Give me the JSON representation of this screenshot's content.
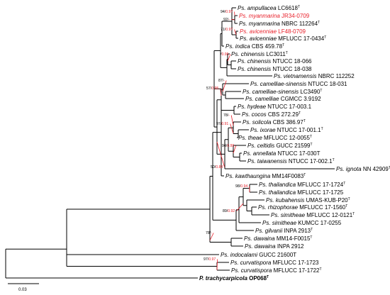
{
  "figure": {
    "scale_bar_label": "0.03",
    "accent_color": "#e8202a",
    "text_color": "#000000"
  },
  "taxa": [
    {
      "genus": "Ps.",
      "epithet": "ampullacea",
      "strain": "LC6618",
      "type": true,
      "red": false
    },
    {
      "genus": "Ps.",
      "epithet": "myanmarina",
      "strain": "JR34-0709",
      "type": false,
      "red": true
    },
    {
      "genus": "Ps.",
      "epithet": "myanmarina",
      "strain": "NBRC 112264",
      "type": true,
      "red": false
    },
    {
      "genus": "Ps.",
      "epithet": "avicenniae",
      "strain": "LF48-0709",
      "type": false,
      "red": true
    },
    {
      "genus": "Ps.",
      "epithet": "avicenniae",
      "strain": "MFLUCC 17-0434",
      "type": true,
      "red": false
    },
    {
      "genus": "Ps.",
      "epithet": "indica",
      "strain": "CBS 459.78",
      "type": true,
      "red": false
    },
    {
      "genus": "Ps.",
      "epithet": "chinensis",
      "strain": "LC3011",
      "type": true,
      "red": false
    },
    {
      "genus": "Ps.",
      "epithet": "chinensis",
      "strain": "NTUCC 18-066",
      "type": false,
      "red": false
    },
    {
      "genus": "Ps.",
      "epithet": "chinensis",
      "strain": "NTUCC 18-038",
      "type": false,
      "red": false
    },
    {
      "genus": "Ps.",
      "epithet": "vietnamensis",
      "strain": "NBRC 112252",
      "type": false,
      "red": false
    },
    {
      "genus": "Ps.",
      "epithet": "camelliae-sinensis",
      "strain": "NTUCC 18-031",
      "type": false,
      "red": false
    },
    {
      "genus": "Ps.",
      "epithet": "camelliae-sinensis",
      "strain": "LC3490",
      "type": true,
      "red": false
    },
    {
      "genus": "Ps.",
      "epithet": "camelliae",
      "strain": "CGMCC 3.9192",
      "type": false,
      "red": false
    },
    {
      "genus": "Ps.",
      "epithet": "hydeae",
      "strain": "NTUCC 17-003.1",
      "type": false,
      "red": false
    },
    {
      "genus": "Ps.",
      "epithet": "cocos",
      "strain": "CBS 272.29",
      "type": true,
      "red": false
    },
    {
      "genus": "Ps.",
      "epithet": "solicola",
      "strain": "CBS 386.97",
      "type": true,
      "red": false
    },
    {
      "genus": "Ps.",
      "epithet": "ixorae",
      "strain": "NTUCC 17-001.1",
      "type": true,
      "red": false
    },
    {
      "genus": "Ps.",
      "epithet": "theae",
      "strain": "MFLUCC 12-0055",
      "type": true,
      "red": false
    },
    {
      "genus": "Ps.",
      "epithet": "celtidis",
      "strain": "GUCC 21599",
      "type": true,
      "red": false
    },
    {
      "genus": "Ps.",
      "epithet": "annellata",
      "strain": "NTUCC 17-030T",
      "type": false,
      "red": false
    },
    {
      "genus": "Ps.",
      "epithet": "taiwanensis",
      "strain": "NTUCC 17-002.1",
      "type": true,
      "red": false
    },
    {
      "genus": "Ps.",
      "epithet": "ignota",
      "strain": "NN 42909",
      "type": true,
      "red": false
    },
    {
      "genus": "Ps.",
      "epithet": "kawthaungina",
      "strain": "MM14F0083",
      "type": true,
      "red": false
    },
    {
      "genus": "Ps.",
      "epithet": "thailandica",
      "strain": "MFLUCC 17-1724",
      "type": true,
      "red": false
    },
    {
      "genus": "Ps.",
      "epithet": "thailandica",
      "strain": "MFLUCC 17-1725",
      "type": false,
      "red": false
    },
    {
      "genus": "Ps.",
      "epithet": "kubahensis",
      "strain": "UMAS-KUB-P20",
      "type": true,
      "red": false
    },
    {
      "genus": "Ps.",
      "epithet": "rhizophorae",
      "strain": "MFLUCC 17-1560",
      "type": true,
      "red": false
    },
    {
      "genus": "Ps.",
      "epithet": "simitheae",
      "strain": "MFLUCC 12-0121",
      "type": true,
      "red": false
    },
    {
      "genus": "Ps.",
      "epithet": "simitheae",
      "strain": "KUMCC 17-0255",
      "type": false,
      "red": false
    },
    {
      "genus": "Ps.",
      "epithet": "gilvanii",
      "strain": "INPA 2913",
      "type": true,
      "red": false
    },
    {
      "genus": "Ps.",
      "epithet": "dawaina",
      "strain": "MM14-F0015",
      "type": true,
      "red": false
    },
    {
      "genus": "Ps.",
      "epithet": "dawaina",
      "strain": "INPA 2912",
      "type": false,
      "red": false
    },
    {
      "genus": "Ps.",
      "epithet": "indocalami",
      "strain": "GUCC 21600T",
      "type": false,
      "red": false
    },
    {
      "genus": "Ps.",
      "epithet": "curvatispora",
      "strain": "MFLUCC 17-1723",
      "type": false,
      "red": false
    },
    {
      "genus": "Ps.",
      "epithet": "curvatispora",
      "strain": "MFLUCC 17-1722",
      "type": true,
      "red": false
    },
    {
      "genus": "P.",
      "epithet": "trachycarpicola",
      "strain": "OP068",
      "type": true,
      "red": false,
      "outgroup": true
    }
  ],
  "support_labels": [
    {
      "id": "s1",
      "ml": "94",
      "bi": "0.97"
    },
    {
      "id": "s2",
      "ml": "92",
      "bi": "-"
    },
    {
      "id": "s3",
      "ml": "71",
      "bi": "0.97"
    },
    {
      "id": "s4",
      "ml": "",
      "bi": "0.95"
    },
    {
      "id": "s5",
      "ml": "87",
      "bi": "-"
    },
    {
      "id": "s6",
      "ml": "57",
      "bi": "0.95"
    },
    {
      "id": "s7",
      "ml": "78",
      "bi": "-"
    },
    {
      "id": "s8",
      "ml": "97",
      "bi": "0.91"
    },
    {
      "id": "s9",
      "ml": "94",
      "bi": "0.99"
    },
    {
      "id": "s10",
      "ml": "50",
      "bi": "0.83"
    },
    {
      "id": "s11",
      "ml": "98",
      "bi": "0.94"
    },
    {
      "id": "s12",
      "ml": "89",
      "bi": "0.92"
    },
    {
      "id": "s13",
      "ml": "78",
      "bi": "-"
    },
    {
      "id": "s14",
      "ml": "97",
      "bi": "0.97"
    }
  ]
}
